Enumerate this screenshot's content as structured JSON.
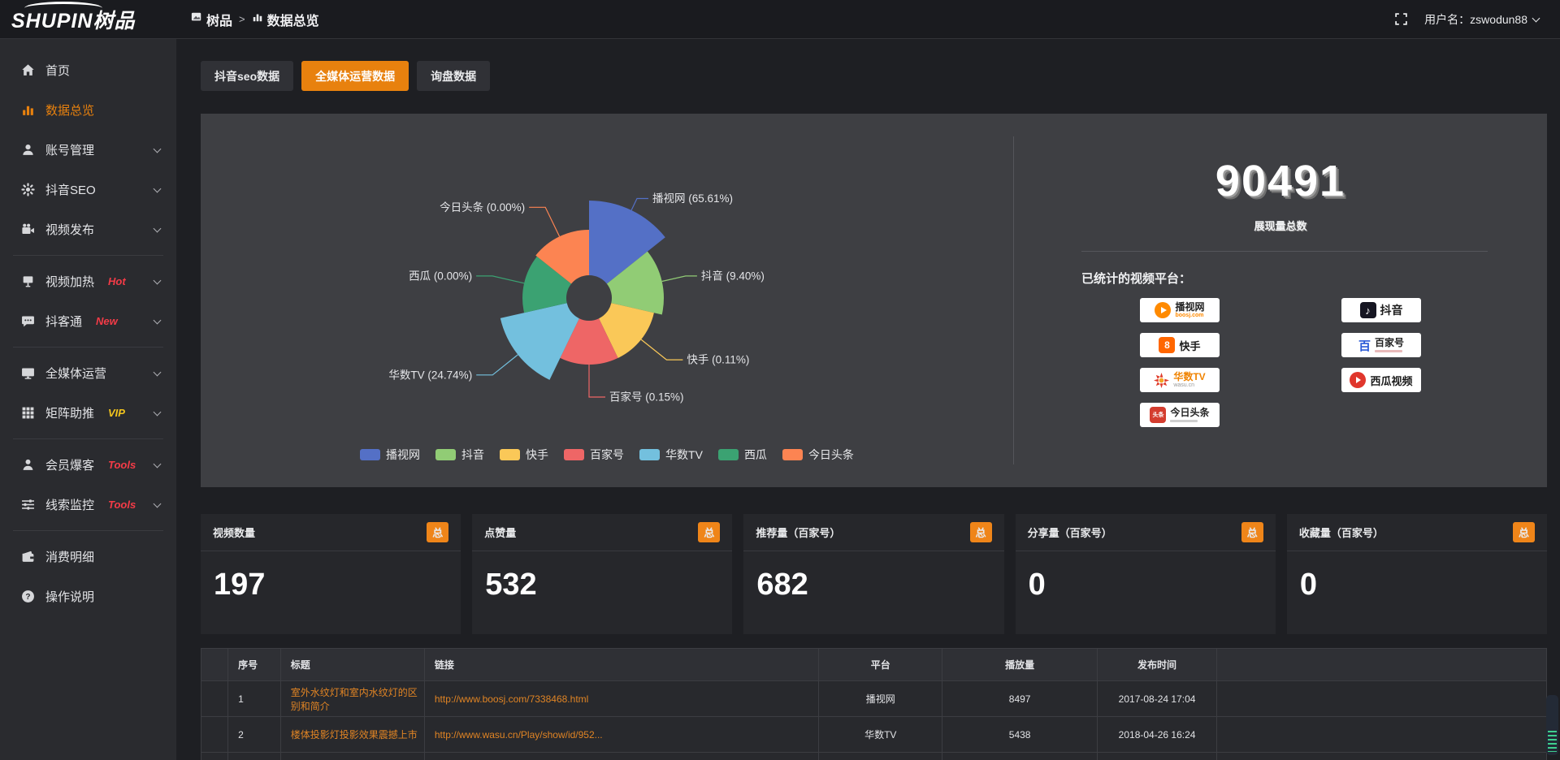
{
  "topbar": {
    "logo": "SHUPIN树品",
    "breadcrumb": {
      "home": "树品",
      "current": "数据总览",
      "separator": ">"
    },
    "username": "用户名：zswodun88"
  },
  "sidebar": {
    "items": [
      {
        "label": "首页",
        "icon": "home-icon"
      },
      {
        "label": "数据总览",
        "icon": "bar-chart-icon",
        "active": true
      },
      {
        "label": "账号管理",
        "icon": "user-icon",
        "chevron": true
      },
      {
        "label": "抖音SEO",
        "icon": "gear-icon",
        "chevron": true
      },
      {
        "label": "视频发布",
        "icon": "video-icon",
        "chevron": true
      },
      {
        "divider": true
      },
      {
        "label": "视频加热",
        "icon": "board-icon",
        "badge": "Hot",
        "badge_color": "#f43b47",
        "chevron": true
      },
      {
        "label": "抖客通",
        "icon": "chat-icon",
        "badge": "New",
        "badge_color": "#f43b47",
        "chevron": true
      },
      {
        "divider": true
      },
      {
        "label": "全媒体运营",
        "icon": "monitor-icon",
        "chevron": true
      },
      {
        "label": "矩阵助推",
        "icon": "grid-icon",
        "badge": "VIP",
        "badge_color": "#f2c41d",
        "chevron": true
      },
      {
        "divider": true
      },
      {
        "label": "会员爆客",
        "icon": "member-icon",
        "badge": "Tools",
        "badge_color": "#f43b47",
        "chevron": true
      },
      {
        "label": "线索监控",
        "icon": "sliders-icon",
        "badge": "Tools",
        "badge_color": "#f43b47",
        "chevron": true
      },
      {
        "divider": true
      },
      {
        "label": "消费明细",
        "icon": "wallet-icon"
      },
      {
        "label": "操作说明",
        "icon": "question-icon"
      }
    ]
  },
  "tabs": [
    {
      "label": "抖音seo数据",
      "active": false
    },
    {
      "label": "全媒体运营数据",
      "active": true
    },
    {
      "label": "询盘数据",
      "active": false
    }
  ],
  "chart_data": {
    "type": "pie",
    "subtype": "nightingale-rose",
    "categories": [
      "播视网",
      "抖音",
      "快手",
      "百家号",
      "华数TV",
      "西瓜",
      "今日头条"
    ],
    "values": [
      65.61,
      9.4,
      0.11,
      0.15,
      24.74,
      0.0,
      0.0
    ],
    "unit": "%",
    "labels": [
      "播视网 (65.61%)",
      "抖音 (9.40%)",
      "快手 (0.11%)",
      "百家号 (0.15%)",
      "华数TV (24.74%)",
      "西瓜 (0.00%)",
      "今日头条 (0.00%)"
    ],
    "colors": [
      "#5470c6",
      "#91cc75",
      "#fac858",
      "#ee6666",
      "#73c0de",
      "#3ba272",
      "#fc8452"
    ],
    "legend_position": "bottom",
    "display_radii": [
      120,
      92,
      82,
      82,
      112,
      82,
      84
    ],
    "inner_radius": 28
  },
  "summary": {
    "value": "90491",
    "caption": "展现量总数",
    "platforms_title": "已统计的视频平台：",
    "platform_columns": [
      [
        {
          "name": "播视网",
          "sub": "boosj.com",
          "logo": "boosj"
        },
        {
          "name": "快手",
          "logo": "kuaishou"
        },
        {
          "name": "华数TV",
          "sub": "wasu.cn",
          "logo": "wasu"
        },
        {
          "name": "今日头条",
          "logo": "toutiao"
        }
      ],
      [
        {
          "name": "抖音",
          "logo": "douyin"
        },
        {
          "name": "百家号",
          "logo": "baijiahao"
        },
        {
          "name": "西瓜视频",
          "logo": "xigua"
        }
      ]
    ]
  },
  "stat_cards": [
    {
      "label": "视频数量",
      "badge": "总",
      "value": "197"
    },
    {
      "label": "点赞量",
      "badge": "总",
      "value": "532"
    },
    {
      "label": "推荐量（百家号）",
      "badge": "总",
      "value": "682"
    },
    {
      "label": "分享量（百家号）",
      "badge": "总",
      "value": "0"
    },
    {
      "label": "收藏量（百家号）",
      "badge": "总",
      "value": "0"
    }
  ],
  "table": {
    "headers": [
      "",
      "序号",
      "标题",
      "链接",
      "平台",
      "播放量",
      "发布时间",
      ""
    ],
    "rows": [
      {
        "seq": "1",
        "title": "室外水纹灯和室内水纹灯的区别和简介",
        "link": "http://www.boosj.com/7338468.html",
        "platform": "播视网",
        "views": "8497",
        "time": "2017-08-24 17:04"
      },
      {
        "seq": "2",
        "title": "楼体投影灯投影效果震撼上市",
        "link": "http://www.wasu.cn/Play/show/id/952...",
        "platform": "华数TV",
        "views": "5438",
        "time": "2018-04-26 16:24"
      }
    ]
  }
}
